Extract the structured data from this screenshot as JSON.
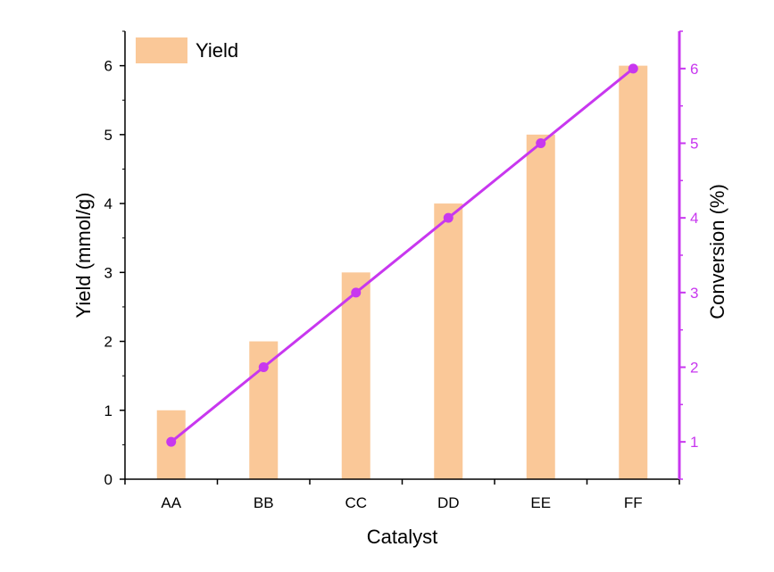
{
  "chart_data": {
    "type": "bar",
    "categories": [
      "AA",
      "BB",
      "CC",
      "DD",
      "EE",
      "FF"
    ],
    "series": [
      {
        "name": "Yield",
        "kind": "bar",
        "axis": "left",
        "values": [
          1,
          2,
          3,
          4,
          5,
          6
        ],
        "color": "#FAC898"
      },
      {
        "name": "Conversion",
        "kind": "line",
        "axis": "right",
        "values": [
          1,
          2,
          3,
          4,
          5,
          6
        ],
        "color": "#C837EF"
      }
    ],
    "xlabel": "Catalyst",
    "ylabel": "Yield (mmol/g)",
    "y2label": "Conversion (%)",
    "ylim": [
      0,
      6.5
    ],
    "y2lim": [
      0.5,
      6.5
    ],
    "yticks": [
      0,
      1,
      2,
      3,
      4,
      5,
      6
    ],
    "y2ticks": [
      1,
      2,
      3,
      4,
      5,
      6
    ],
    "legend": {
      "position": "top-left",
      "entries": [
        "Yield"
      ]
    },
    "grid": false
  }
}
